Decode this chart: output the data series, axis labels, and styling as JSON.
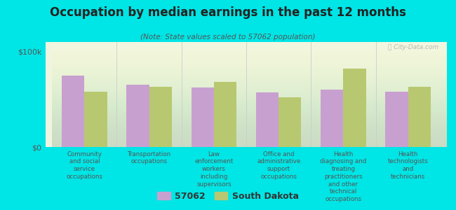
{
  "title": "Occupation by median earnings in the past 12 months",
  "subtitle": "(Note: State values scaled to 57062 population)",
  "background_color": "#00e5e5",
  "plot_bg_top": "#f0f5e0",
  "plot_bg_bottom": "#e0edd0",
  "categories": [
    "Community\nand social\nservice\noccupations",
    "Transportation\noccupations",
    "Law\nenforcement\nworkers\nincluding\nsupervisors",
    "Office and\nadministrative\nsupport\noccupations",
    "Health\ndiagnosing and\ntreating\npractitioners\nand other\ntechnical\noccupations",
    "Health\ntechnologists\nand\ntechnicians"
  ],
  "values_57062": [
    75000,
    65000,
    62000,
    57000,
    60000,
    58000
  ],
  "values_sd": [
    58000,
    63000,
    68000,
    52000,
    82000,
    63000
  ],
  "color_57062": "#c8a0d0",
  "color_sd": "#b8c870",
  "ylim": [
    0,
    110000
  ],
  "yticks": [
    0,
    100000
  ],
  "ytick_labels": [
    "$0",
    "$100k"
  ],
  "legend_label_57062": "57062",
  "legend_label_sd": "South Dakota",
  "bar_width": 0.35,
  "watermark": "Ⓜ City-Data.com"
}
